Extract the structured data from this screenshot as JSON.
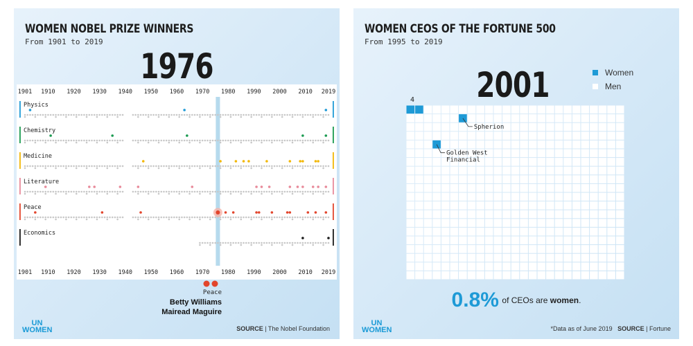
{
  "left_panel": {
    "title": "WOMEN NOBEL PRIZE WINNERS",
    "subtitle": "From 1901 to 2019",
    "current_year": "1976",
    "winner": {
      "category": "Peace",
      "names": [
        "Betty Williams",
        "Mairead Maguire"
      ]
    },
    "source_label": "SOURCE",
    "source_text": "| The Nobel Foundation",
    "logo": [
      "UN",
      "WOMEN"
    ]
  },
  "right_panel": {
    "title": "WOMEN CEOS OF THE FORTUNE 500",
    "subtitle": "From 1995 to 2019",
    "current_year": "2001",
    "legend": [
      {
        "label": "Women",
        "color": "#1e9ad6"
      },
      {
        "label": "Men",
        "color": "#ffffff"
      }
    ],
    "count_label": "4",
    "annotations": [
      "Spherion",
      "Golden West\nFinancial"
    ],
    "stat_value": "0.8%",
    "stat_text_before": "of CEOs are ",
    "stat_text_bold": "women",
    "stat_text_after": ".",
    "note": "*Data as of June 2019",
    "source_label": "SOURCE",
    "source_text": "| Fortune",
    "logo": [
      "UN",
      "WOMEN"
    ]
  },
  "chart_data": [
    {
      "type": "scatter",
      "title": "WOMEN NOBEL PRIZE WINNERS",
      "subtitle": "From 1901 to 2019",
      "x_ticks": [
        1901,
        1910,
        1920,
        1930,
        1940,
        1950,
        1960,
        1970,
        1980,
        1990,
        2000,
        2010,
        2019
      ],
      "xlim": [
        1901,
        2019
      ],
      "highlight_year": 1976,
      "categories": [
        {
          "name": "Physics",
          "color": "#1e9ad6",
          "start": 1901,
          "women_years": [
            1903,
            1963,
            2018
          ]
        },
        {
          "name": "Chemistry",
          "color": "#1a9a50",
          "start": 1901,
          "women_years": [
            1911,
            1935,
            1964,
            2009,
            2018
          ]
        },
        {
          "name": "Medicine",
          "color": "#f2b705",
          "start": 1901,
          "women_years": [
            1947,
            1977,
            1983,
            1986,
            1988,
            1995,
            2004,
            2008,
            2009,
            2014,
            2015
          ]
        },
        {
          "name": "Literature",
          "color": "#e88a9a",
          "start": 1901,
          "women_years": [
            1909,
            1926,
            1928,
            1938,
            1945,
            1966,
            1991,
            1993,
            1996,
            2004,
            2007,
            2009,
            2013,
            2015,
            2018
          ]
        },
        {
          "name": "Peace",
          "color": "#e2452c",
          "start": 1901,
          "women_years": [
            1905,
            1931,
            1946,
            1976,
            1979,
            1982,
            1991,
            1992,
            1997,
            2003,
            2004,
            2011,
            2014,
            2018
          ]
        },
        {
          "name": "Economics",
          "color": "#1a1a1a",
          "start": 1969,
          "women_years": [
            2009,
            2019
          ]
        }
      ]
    },
    {
      "type": "heatmap",
      "title": "WOMEN CEOS OF THE FORTUNE 500",
      "subtitle": "From 1995 to 2019",
      "year": 2001,
      "total_ceos": 500,
      "women_ceos": 4,
      "women_percent": 0.8,
      "named_companies": [
        "Spherion",
        "Golden West Financial"
      ],
      "legend": [
        "Women",
        "Men"
      ]
    }
  ]
}
